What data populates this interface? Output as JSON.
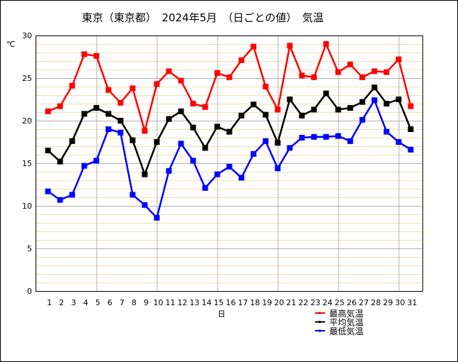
{
  "title": "東京（東京都）　2024年5月　（日ごとの値）　気温",
  "chart_data": {
    "type": "line",
    "title": "東京（東京都）　2024年5月　（日ごとの値）　気温",
    "xlabel": "日",
    "ylabel": "℃",
    "ylim": [
      0,
      30
    ],
    "yticks": [
      0,
      5,
      10,
      15,
      20,
      25,
      30
    ],
    "grid": true,
    "legend_position": "bottom-right",
    "x": [
      1,
      2,
      3,
      4,
      5,
      6,
      7,
      8,
      9,
      10,
      11,
      12,
      13,
      14,
      15,
      16,
      17,
      18,
      19,
      20,
      21,
      22,
      23,
      24,
      25,
      26,
      27,
      28,
      29,
      30,
      31
    ],
    "series": [
      {
        "name": "最高気温",
        "color": "#ff0000",
        "values": [
          21.1,
          21.7,
          24.1,
          27.8,
          27.6,
          23.6,
          22.1,
          23.8,
          18.8,
          24.3,
          25.8,
          24.7,
          22.0,
          21.6,
          25.6,
          25.1,
          27.1,
          28.7,
          24.0,
          21.3,
          28.8,
          25.3,
          25.1,
          29.0,
          25.7,
          26.6,
          25.1,
          25.8,
          25.7,
          27.2,
          21.7
        ]
      },
      {
        "name": "平均気温",
        "color": "#000000",
        "values": [
          16.5,
          15.2,
          17.6,
          20.8,
          21.5,
          20.8,
          20.0,
          17.7,
          13.7,
          17.5,
          20.2,
          21.1,
          19.2,
          16.8,
          19.3,
          18.7,
          20.6,
          21.9,
          20.7,
          17.4,
          22.5,
          20.6,
          21.3,
          23.2,
          21.3,
          21.5,
          22.2,
          23.9,
          22.0,
          22.5,
          19.0
        ]
      },
      {
        "name": "最低気温",
        "color": "#0000ff",
        "values": [
          11.7,
          10.7,
          11.3,
          14.7,
          15.3,
          19.0,
          18.6,
          11.3,
          10.1,
          8.6,
          14.1,
          17.3,
          15.3,
          12.1,
          13.7,
          14.6,
          13.3,
          16.1,
          17.6,
          14.4,
          16.8,
          18.0,
          18.1,
          18.1,
          18.2,
          17.6,
          20.1,
          22.4,
          18.7,
          17.5,
          16.6
        ]
      }
    ]
  },
  "colors": {
    "minor_grid": "#f0e0b0",
    "major_grid": "#b0b0b0",
    "axis": "#000000"
  }
}
